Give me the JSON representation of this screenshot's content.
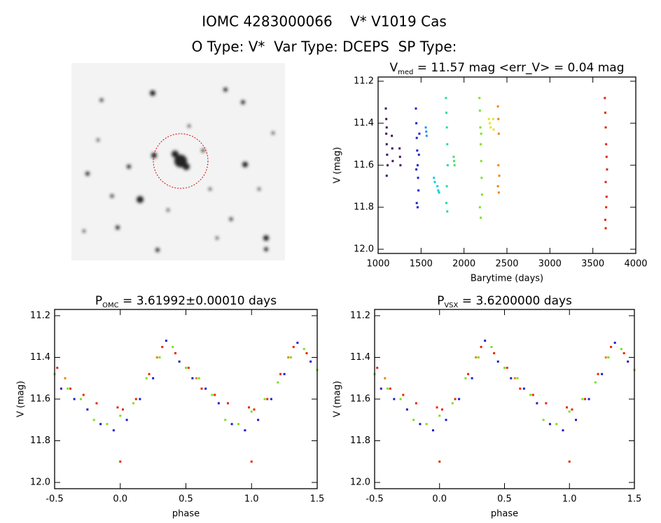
{
  "header": {
    "title": "IOMC 4283000066    V* V1019 Cas",
    "subtitle": "O Type: V*  Var Type: DCEPS  SP Type:"
  },
  "chart_data": [
    {
      "type": "scatter",
      "title": [
        "V",
        "med",
        " = 11.57 mag <err_V> = 0.04 mag"
      ],
      "x_label": "Barytime (days)",
      "y_label": "V (mag)",
      "xlim": [
        1000,
        4000
      ],
      "xticks": [
        1000,
        1500,
        2000,
        2500,
        3000,
        3500,
        4000
      ],
      "ylim": [
        11.18,
        12.02
      ],
      "y_inverted": true,
      "yticks": [
        11.2,
        11.4,
        11.6,
        11.8,
        {
          "value": 12,
          "label": "12.0"
        }
      ],
      "series": [
        {
          "color": "#3a0a5a",
          "x": [
            1090,
            1095,
            1100,
            1100,
            1105,
            1110,
            1100,
            1095,
            1160,
            1165,
            1170,
            1250,
            1255,
            1260
          ],
          "values": [
            11.33,
            11.38,
            11.42,
            11.5,
            11.55,
            11.6,
            11.65,
            11.45,
            11.46,
            11.52,
            11.58,
            11.52,
            11.56,
            11.6
          ]
        },
        {
          "color": "#1a1acc",
          "x": [
            1440,
            1445,
            1450,
            1455,
            1460,
            1465,
            1470,
            1450,
            1460,
            1475,
            1480,
            1445
          ],
          "values": [
            11.33,
            11.4,
            11.47,
            11.53,
            11.6,
            11.66,
            11.72,
            11.78,
            11.8,
            11.55,
            11.45,
            11.62
          ]
        },
        {
          "color": "#1e90ff",
          "x": [
            1555,
            1560,
            1565
          ],
          "values": [
            11.42,
            11.44,
            11.46
          ]
        },
        {
          "color": "#00ccdd",
          "x": [
            1650,
            1660,
            1690,
            1700,
            1710
          ],
          "values": [
            11.66,
            11.68,
            11.7,
            11.72,
            11.73
          ]
        },
        {
          "color": "#20d8a0",
          "x": [
            1790,
            1795,
            1800,
            1805,
            1810,
            1800,
            1795,
            1805
          ],
          "values": [
            11.28,
            11.35,
            11.42,
            11.5,
            11.6,
            11.7,
            11.78,
            11.82
          ]
        },
        {
          "color": "#40e060",
          "x": [
            1880,
            1885,
            1890
          ],
          "values": [
            11.56,
            11.58,
            11.6
          ]
        },
        {
          "color": "#7be020",
          "x": [
            2180,
            2185,
            2190,
            2195,
            2200,
            2205,
            2210,
            2185,
            2195,
            2200
          ],
          "values": [
            11.28,
            11.34,
            11.42,
            11.5,
            11.58,
            11.66,
            11.74,
            11.8,
            11.85,
            11.45
          ]
        },
        {
          "color": "#e8e020",
          "x": [
            2290,
            2300,
            2310,
            2340,
            2345
          ],
          "values": [
            11.38,
            11.4,
            11.42,
            11.38,
            11.43
          ]
        },
        {
          "color": "#f08000",
          "x": [
            2395,
            2400,
            2405,
            2400,
            2410,
            2395,
            2405
          ],
          "values": [
            11.32,
            11.38,
            11.45,
            11.6,
            11.65,
            11.7,
            11.73
          ]
        },
        {
          "color": "#dd2000",
          "x": [
            3640,
            3645,
            3650,
            3655,
            3660,
            3665,
            3650,
            3660,
            3655,
            3645,
            3650
          ],
          "values": [
            11.28,
            11.35,
            11.42,
            11.5,
            11.56,
            11.62,
            11.68,
            11.75,
            11.8,
            11.86,
            11.9
          ]
        }
      ]
    },
    {
      "type": "scatter",
      "title": [
        "P",
        "OMC",
        " = 3.61992±0.00010 days"
      ],
      "x_label": "phase",
      "y_label": "V (mag)",
      "xlim": [
        -0.5,
        1.5
      ],
      "xticks": [
        -0.5,
        {
          "value": 0,
          "label": "0.0"
        },
        0.5,
        {
          "value": 1,
          "label": "1.0"
        },
        1.5
      ],
      "ylim": [
        11.17,
        12.03
      ],
      "y_inverted": true,
      "yticks": [
        11.2,
        11.4,
        11.6,
        11.8,
        {
          "value": 12,
          "label": "12.0"
        }
      ],
      "series": [
        {
          "color": "#1a1acc",
          "x": [
            -0.45,
            -0.35,
            -0.25,
            -0.15,
            -0.05,
            0.05,
            0.15,
            0.25,
            0.35,
            0.45,
            0.55,
            0.65,
            0.75,
            0.85,
            0.95,
            1.05,
            1.15,
            1.25,
            1.35,
            1.45
          ],
          "values": [
            11.55,
            11.6,
            11.65,
            11.72,
            11.75,
            11.7,
            11.6,
            11.5,
            11.32,
            11.42,
            11.5,
            11.55,
            11.62,
            11.72,
            11.75,
            11.7,
            11.6,
            11.48,
            11.33,
            11.42
          ]
        },
        {
          "color": "#7be020",
          "x": [
            -0.5,
            -0.4,
            -0.3,
            -0.2,
            -0.1,
            0.0,
            0.1,
            0.2,
            0.3,
            0.4,
            0.5,
            0.6,
            0.7,
            0.8,
            0.9,
            1.0,
            1.1,
            1.2,
            1.3,
            1.4,
            1.5
          ],
          "values": [
            11.48,
            11.55,
            11.6,
            11.7,
            11.72,
            11.68,
            11.62,
            11.5,
            11.4,
            11.35,
            11.45,
            11.5,
            11.58,
            11.7,
            11.72,
            11.66,
            11.6,
            11.52,
            11.4,
            11.36,
            11.46
          ]
        },
        {
          "color": "#f08000",
          "x": [
            -0.42,
            0.28,
            0.58,
            1.28
          ],
          "values": [
            11.5,
            11.4,
            11.5,
            11.4
          ]
        },
        {
          "color": "#ee2200",
          "x": [
            -0.48,
            -0.38,
            -0.28,
            -0.18,
            -0.02,
            0.02,
            0.12,
            0.22,
            0.32,
            0.42,
            0.52,
            0.62,
            0.72,
            0.82,
            0.98,
            1.02,
            1.12,
            1.22,
            1.32,
            1.42,
            0.0,
            1.0
          ],
          "values": [
            11.45,
            11.55,
            11.58,
            11.62,
            11.64,
            11.65,
            11.6,
            11.48,
            11.35,
            11.38,
            11.45,
            11.55,
            11.58,
            11.62,
            11.64,
            11.65,
            11.6,
            11.48,
            11.35,
            11.38,
            11.9,
            11.9
          ]
        }
      ]
    },
    {
      "type": "scatter",
      "title": [
        "P",
        "VSX",
        " = 3.6200000 days"
      ],
      "x_label": "phase",
      "y_label": "V (mag)",
      "xlim": [
        -0.5,
        1.5
      ],
      "xticks": [
        -0.5,
        {
          "value": 0,
          "label": "0.0"
        },
        0.5,
        {
          "value": 1,
          "label": "1.0"
        },
        1.5
      ],
      "ylim": [
        11.17,
        12.03
      ],
      "y_inverted": true,
      "yticks": [
        11.2,
        11.4,
        11.6,
        11.8,
        {
          "value": 12,
          "label": "12.0"
        }
      ],
      "series": [
        {
          "color": "#1a1acc",
          "x": [
            -0.45,
            -0.35,
            -0.25,
            -0.15,
            -0.05,
            0.05,
            0.15,
            0.25,
            0.35,
            0.45,
            0.55,
            0.65,
            0.75,
            0.85,
            0.95,
            1.05,
            1.15,
            1.25,
            1.35,
            1.45
          ],
          "values": [
            11.55,
            11.6,
            11.65,
            11.72,
            11.75,
            11.7,
            11.6,
            11.5,
            11.32,
            11.42,
            11.5,
            11.55,
            11.62,
            11.72,
            11.75,
            11.7,
            11.6,
            11.48,
            11.33,
            11.42
          ]
        },
        {
          "color": "#7be020",
          "x": [
            -0.5,
            -0.4,
            -0.3,
            -0.2,
            -0.1,
            0.0,
            0.1,
            0.2,
            0.3,
            0.4,
            0.5,
            0.6,
            0.7,
            0.8,
            0.9,
            1.0,
            1.1,
            1.2,
            1.3,
            1.4,
            1.5
          ],
          "values": [
            11.48,
            11.55,
            11.6,
            11.7,
            11.72,
            11.68,
            11.62,
            11.5,
            11.4,
            11.35,
            11.45,
            11.5,
            11.58,
            11.7,
            11.72,
            11.66,
            11.6,
            11.52,
            11.4,
            11.36,
            11.46
          ]
        },
        {
          "color": "#f08000",
          "x": [
            -0.42,
            0.28,
            0.58,
            1.28
          ],
          "values": [
            11.5,
            11.4,
            11.5,
            11.4
          ]
        },
        {
          "color": "#ee2200",
          "x": [
            -0.48,
            -0.38,
            -0.28,
            -0.18,
            -0.02,
            0.02,
            0.12,
            0.22,
            0.32,
            0.42,
            0.52,
            0.62,
            0.72,
            0.82,
            0.98,
            1.02,
            1.12,
            1.22,
            1.32,
            1.42,
            0.0,
            1.0
          ],
          "values": [
            11.45,
            11.55,
            11.58,
            11.62,
            11.64,
            11.65,
            11.6,
            11.48,
            11.35,
            11.38,
            11.45,
            11.55,
            11.58,
            11.62,
            11.64,
            11.65,
            11.6,
            11.48,
            11.35,
            11.38,
            11.9,
            11.9
          ]
        }
      ]
    }
  ]
}
